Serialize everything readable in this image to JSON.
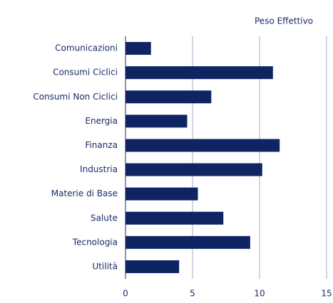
{
  "chart_data": {
    "type": "bar",
    "orientation": "horizontal",
    "title": "Peso Effettivo",
    "categories": [
      "Comunicazioni",
      "Consumi Ciclici",
      "Consumi Non Ciclici",
      "Energia",
      "Finanza",
      "Industria",
      "Materie di Base",
      "Salute",
      "Tecnologia",
      "Utilità"
    ],
    "values": [
      1.9,
      11.0,
      6.4,
      4.6,
      11.5,
      10.2,
      5.4,
      7.3,
      9.3,
      4.0
    ],
    "color": "#0f2462",
    "xlim": [
      0,
      15
    ],
    "xticks": [
      0,
      5,
      10,
      15
    ],
    "grid": true
  }
}
